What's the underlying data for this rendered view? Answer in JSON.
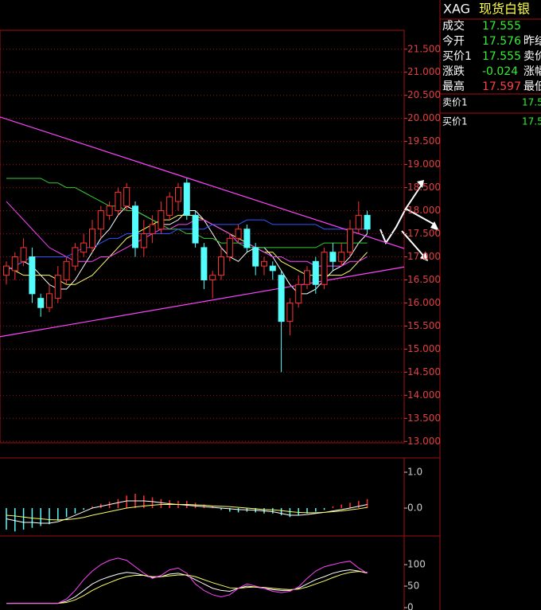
{
  "chart_data": [
    {
      "type": "candlestick",
      "open": [
        16.6,
        16.7,
        16.9,
        17.0,
        16.1,
        15.9,
        16.1,
        16.5,
        16.8,
        17.1,
        17.2,
        17.6,
        17.9,
        18.0,
        18.1,
        18.1,
        17.2,
        17.5,
        17.6,
        17.9,
        18.2,
        18.6,
        17.9,
        17.2,
        16.5,
        16.6,
        17.0,
        17.4,
        17.6,
        17.2,
        16.8,
        16.8,
        16.6,
        15.6,
        16.0,
        16.4,
        16.9,
        16.4,
        17.1,
        16.9,
        17.1,
        17.6,
        17.9
      ],
      "high": [
        16.9,
        17.1,
        17.4,
        17.2,
        16.2,
        16.4,
        16.8,
        17.0,
        17.3,
        17.5,
        17.8,
        18.1,
        18.2,
        18.5,
        18.6,
        18.2,
        17.8,
        17.9,
        18.2,
        18.4,
        18.6,
        18.7,
        18.0,
        17.3,
        16.7,
        17.2,
        17.5,
        17.7,
        17.7,
        17.3,
        17.0,
        16.9,
        16.7,
        16.1,
        16.6,
        16.8,
        17.0,
        17.2,
        17.3,
        17.3,
        17.8,
        18.2,
        18.0
      ],
      "low": [
        16.4,
        16.5,
        16.8,
        16.0,
        15.7,
        15.8,
        16.0,
        16.4,
        16.7,
        17.0,
        17.1,
        17.4,
        17.8,
        17.9,
        18.0,
        17.0,
        17.0,
        17.3,
        17.5,
        17.8,
        18.0,
        17.8,
        17.2,
        16.3,
        16.1,
        16.5,
        16.9,
        17.3,
        17.1,
        16.6,
        16.6,
        16.5,
        14.5,
        15.3,
        15.9,
        16.3,
        16.2,
        16.3,
        16.7,
        16.8,
        17.0,
        17.5,
        17.5
      ],
      "close": [
        16.8,
        17.0,
        17.2,
        16.2,
        15.9,
        16.2,
        16.6,
        16.9,
        17.2,
        17.3,
        17.6,
        18.0,
        18.1,
        18.4,
        18.5,
        17.2,
        17.5,
        17.7,
        18.0,
        18.3,
        18.5,
        17.9,
        17.3,
        16.5,
        16.6,
        17.0,
        17.4,
        17.6,
        17.2,
        16.8,
        16.9,
        16.7,
        15.6,
        16.0,
        16.4,
        16.7,
        16.4,
        17.1,
        16.9,
        17.1,
        17.6,
        17.9,
        17.6
      ],
      "up_color": "#ff3232",
      "down_color": "#54fcfc",
      "tick_color": "#e04040",
      "grid": true,
      "ylim": [
        12.97,
        21.91
      ],
      "yticks": [
        {
          "value": 13,
          "label": "13.000"
        },
        {
          "value": 13.5,
          "label": "13.500"
        },
        {
          "value": 14,
          "label": "14.000"
        },
        {
          "value": 14.5,
          "label": "14.500"
        },
        {
          "value": 15,
          "label": "15.000"
        },
        {
          "value": 15.5,
          "label": "15.500"
        },
        {
          "value": 16,
          "label": "16.000"
        },
        {
          "value": 16.5,
          "label": "16.500"
        },
        {
          "value": 17,
          "label": "17.000"
        },
        {
          "value": 17.5,
          "label": "17.500"
        },
        {
          "value": 18,
          "label": "18.000"
        },
        {
          "value": 18.5,
          "label": "18.500"
        },
        {
          "value": 19,
          "label": "19.000"
        },
        {
          "value": 19.5,
          "label": "19.500"
        },
        {
          "value": 20,
          "label": "20.000"
        },
        {
          "value": 20.5,
          "label": "20.500"
        },
        {
          "value": 21,
          "label": "21.000"
        },
        {
          "value": 21.5,
          "label": "21.500"
        }
      ],
      "series": [
        {
          "color": "#ffffff",
          "values": [
            16.7,
            16.8,
            16.9,
            16.8,
            16.6,
            16.4,
            16.3,
            16.3,
            16.5,
            16.8,
            17.1,
            17.4,
            17.6,
            17.9,
            18.1,
            18.0,
            17.9,
            17.8,
            17.7,
            17.7,
            17.8,
            18.0,
            18.0,
            17.8,
            17.5,
            17.2,
            17.0,
            16.9,
            17.1,
            17.2,
            17.2,
            17.0,
            16.7,
            16.4,
            16.2,
            16.2,
            16.3,
            16.5,
            16.7,
            16.8,
            17.0,
            17.3,
            17.5
          ]
        },
        {
          "color": "#ffff66",
          "values": [
            16.8,
            16.7,
            16.6,
            16.6,
            16.6,
            16.6,
            16.5,
            16.4,
            16.4,
            16.5,
            16.6,
            16.8,
            17.0,
            17.2,
            17.4,
            17.5,
            17.6,
            17.7,
            17.8,
            17.8,
            17.9,
            17.9,
            17.9,
            17.8,
            17.7,
            17.6,
            17.5,
            17.4,
            17.3,
            17.2,
            17.1,
            17.1,
            16.9,
            16.8,
            16.7,
            16.6,
            16.6,
            16.6,
            16.6,
            16.6,
            16.7,
            16.9,
            17.1
          ]
        },
        {
          "color": "#ff44ff",
          "values": [
            18.2,
            18.0,
            17.8,
            17.6,
            17.4,
            17.2,
            17.1,
            17.0,
            16.9,
            16.9,
            16.9,
            17.0,
            17.0,
            17.1,
            17.2,
            17.3,
            17.4,
            17.5,
            17.6,
            17.6,
            17.7,
            17.7,
            17.8,
            17.8,
            17.7,
            17.6,
            17.5,
            17.3,
            17.3,
            17.2,
            17.1,
            17.0,
            17.0,
            16.9,
            16.9,
            16.9,
            16.8,
            16.8,
            16.8,
            16.8,
            16.9,
            16.9,
            17.0
          ]
        },
        {
          "color": "#33cc33",
          "values": [
            18.7,
            18.7,
            18.7,
            18.7,
            18.7,
            18.6,
            18.6,
            18.5,
            18.5,
            18.4,
            18.3,
            18.2,
            18.1,
            18.1,
            18.0,
            18.0,
            17.9,
            17.8,
            17.7,
            17.6,
            17.6,
            17.5,
            17.5,
            17.4,
            17.4,
            17.3,
            17.3,
            17.3,
            17.2,
            17.2,
            17.2,
            17.2,
            17.2,
            17.2,
            17.2,
            17.2,
            17.2,
            17.3,
            17.3,
            17.3,
            17.3,
            17.3,
            17.3
          ]
        },
        {
          "color": "#3355ff",
          "values": [
            16.7,
            16.8,
            16.9,
            17.0,
            17.0,
            17.0,
            17.0,
            17.0,
            17.1,
            17.2,
            17.2,
            17.3,
            17.4,
            17.4,
            17.5,
            17.5,
            17.5,
            17.5,
            17.5,
            17.5,
            17.6,
            17.6,
            17.6,
            17.6,
            17.7,
            17.7,
            17.7,
            17.7,
            17.8,
            17.8,
            17.8,
            17.7,
            17.7,
            17.7,
            17.7,
            17.7,
            17.7,
            17.6,
            17.6,
            17.6,
            17.6,
            17.6,
            17.6
          ]
        }
      ],
      "trendlines": [
        {
          "color": "#ff44ff",
          "x": [
            -0.74,
            46.3
          ],
          "y": [
            20.03,
            17.18
          ]
        },
        {
          "color": "#ff44ff",
          "x": [
            -0.74,
            46.3
          ],
          "y": [
            15.27,
            16.78
          ]
        }
      ]
    },
    {
      "type": "macd",
      "values": [
        -0.6,
        -0.65,
        -0.6,
        -0.55,
        -0.5,
        -0.45,
        -0.35,
        -0.25,
        -0.15,
        -0.05,
        0.05,
        0.12,
        0.18,
        0.25,
        0.35,
        0.4,
        0.35,
        0.3,
        0.25,
        0.22,
        0.2,
        0.2,
        0.15,
        0.1,
        0.05,
        -0.05,
        -0.1,
        -0.12,
        -0.1,
        -0.12,
        -0.15,
        -0.15,
        -0.2,
        -0.25,
        -0.2,
        -0.15,
        -0.1,
        -0.05,
        0.05,
        0.1,
        0.15,
        0.2,
        0.25
      ],
      "up_color": "#ff3232",
      "down_color": "#54fcfc",
      "tick_color": "#cccccc",
      "ylim": [
        -0.71,
        1.4
      ],
      "yticks": [
        {
          "value": 1,
          "label": "1.0"
        },
        {
          "value": 0,
          "label": "0.0"
        }
      ],
      "series": [
        {
          "color": "#ffffff",
          "values": [
            -0.3,
            -0.35,
            -0.4,
            -0.4,
            -0.42,
            -0.42,
            -0.38,
            -0.3,
            -0.2,
            -0.1,
            0,
            0.05,
            0.1,
            0.15,
            0.2,
            0.2,
            0.2,
            0.18,
            0.15,
            0.12,
            0.1,
            0.08,
            0.06,
            0.04,
            0.02,
            0,
            -0.02,
            -0.04,
            -0.05,
            -0.06,
            -0.08,
            -0.1,
            -0.15,
            -0.2,
            -0.2,
            -0.18,
            -0.15,
            -0.12,
            -0.08,
            -0.04,
            0,
            0.05,
            0.1
          ]
        },
        {
          "color": "#ffff66",
          "values": [
            -0.2,
            -0.22,
            -0.25,
            -0.28,
            -0.3,
            -0.32,
            -0.33,
            -0.32,
            -0.3,
            -0.26,
            -0.2,
            -0.15,
            -0.1,
            -0.05,
            0,
            0.03,
            0.06,
            0.08,
            0.1,
            0.1,
            0.1,
            0.1,
            0.09,
            0.08,
            0.06,
            0.05,
            0.04,
            0.02,
            0,
            -0.02,
            -0.04,
            -0.05,
            -0.07,
            -0.1,
            -0.12,
            -0.13,
            -0.13,
            -0.12,
            -0.1,
            -0.08,
            -0.05,
            -0.02,
            0.02
          ]
        }
      ]
    },
    {
      "type": "line",
      "tick_color": "#cccccc",
      "ylim": [
        -5.5,
        163
      ],
      "yticks": [
        100,
        50,
        0
      ],
      "series": [
        {
          "color": "#ffffff",
          "values": [
            10,
            10,
            10,
            10,
            10,
            10,
            10,
            15,
            25,
            40,
            55,
            65,
            72,
            78,
            82,
            80,
            75,
            70,
            72,
            78,
            80,
            75,
            65,
            55,
            45,
            40,
            38,
            45,
            50,
            48,
            45,
            42,
            40,
            40,
            45,
            55,
            65,
            72,
            80,
            85,
            88,
            85,
            80
          ]
        },
        {
          "color": "#ffff66",
          "values": [
            10,
            10,
            10,
            10,
            10,
            10,
            10,
            12,
            18,
            28,
            40,
            50,
            58,
            66,
            72,
            75,
            75,
            72,
            72,
            74,
            76,
            76,
            72,
            65,
            58,
            52,
            46,
            45,
            47,
            48,
            47,
            45,
            43,
            42,
            43,
            48,
            55,
            62,
            70,
            77,
            82,
            84,
            82
          ]
        },
        {
          "color": "#ff44ff",
          "values": [
            10,
            10,
            10,
            10,
            10,
            10,
            10,
            20,
            40,
            65,
            85,
            100,
            110,
            115,
            110,
            95,
            80,
            68,
            75,
            88,
            92,
            80,
            55,
            40,
            30,
            25,
            30,
            45,
            55,
            50,
            45,
            38,
            35,
            38,
            48,
            68,
            85,
            95,
            100,
            105,
            108,
            92,
            80
          ]
        }
      ]
    }
  ],
  "quote_panel": {
    "symbol": "XAG",
    "name": "现货白银",
    "rows": [
      {
        "label": "成交",
        "value": "17.555",
        "color": "#33ee33"
      },
      {
        "label": "今开",
        "value": "17.576",
        "color": "#33ee33",
        "label2": "昨结"
      },
      {
        "label": "买价1",
        "value": "17.555",
        "color": "#33ee33",
        "label2": "卖价"
      },
      {
        "label": "涨跌",
        "value": "-0.024",
        "color": "#33ee33",
        "label2": "涨幅"
      },
      {
        "label": "最高",
        "value": "17.597",
        "color": "#ff4040",
        "label2": "最低"
      }
    ],
    "depth": [
      {
        "label": "卖价1",
        "value": "17.5",
        "color": "#33ee33"
      },
      {
        "label": "买价1",
        "value": "17.5",
        "color": "#33ee33"
      }
    ]
  }
}
